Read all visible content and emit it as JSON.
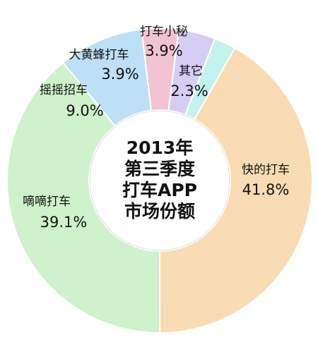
{
  "chart_data": {
    "type": "donut",
    "title": [
      "2013年",
      "第三季度",
      "打车APP",
      "市场份额"
    ],
    "categories": [
      "快的打车",
      "嘀嘀打车",
      "摇摇招车",
      "大黄蜂打车",
      "打车小秘",
      "其它"
    ],
    "values": [
      41.8,
      39.1,
      9.0,
      3.9,
      3.9,
      2.3
    ],
    "value_labels": [
      "41.8%",
      "39.1%",
      "9.0%",
      "3.9%",
      "3.9%",
      "2.3%"
    ],
    "colors": [
      "#f9dcb3",
      "#cff1cb",
      "#bde0f6",
      "#f1c3d3",
      "#d5cdf3",
      "#c4f2ee"
    ]
  }
}
